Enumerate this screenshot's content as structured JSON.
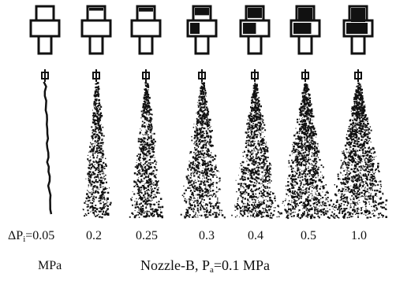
{
  "figure": {
    "delta_symbol": "ΔP",
    "delta_subscript": "i",
    "delta_equals": "=",
    "unit_left": "MPa",
    "pressures": [
      "0.05",
      "0.2",
      "0.25",
      "0.3",
      "0.4",
      "0.5",
      "1.0"
    ],
    "caption": {
      "nozzle": "Nozzle-B,",
      "p_symbol": "P",
      "p_subscript": "a",
      "p_value": "=0.1",
      "unit": "MPa"
    }
  },
  "colors": {
    "ink": "#111111",
    "paper": "#ffffff"
  },
  "icons": [
    "nozzle-icon",
    "spray-plume-icon"
  ]
}
